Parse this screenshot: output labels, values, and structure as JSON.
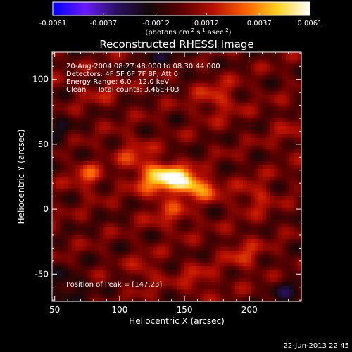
{
  "chart_data": {
    "type": "heatmap",
    "title": "Reconstructed RHESSI Image",
    "xlabel": "Heliocentric X (arcsec)",
    "ylabel": "Heliocentric Y (arcsec)",
    "xlim": [
      48,
      240
    ],
    "ylim": [
      -71,
      121
    ],
    "x_ticks": [
      50,
      100,
      150,
      200
    ],
    "y_ticks": [
      -50,
      0,
      50,
      100
    ],
    "colorbar": {
      "min": -0.0061,
      "max": 0.0061,
      "tick_values": [
        -0.0061,
        -0.0037,
        -0.0012,
        0.0012,
        0.0037,
        0.0061
      ],
      "tick_labels": [
        "-0.0061",
        "-0.0037",
        "-0.0012",
        "0.0012",
        "0.0037",
        "0.0061"
      ],
      "units_text": "(photons cm",
      "units_sup1": "-2",
      "units_mid1": " s",
      "units_sup2": "-1",
      "units_mid2": " asec",
      "units_sup3": "-2",
      "units_end": ")",
      "colormap_stops": [
        "#0000ff",
        "#6a1aff",
        "#2a1060",
        "#140808",
        "#5c0000",
        "#b81000",
        "#ff6000",
        "#ffd21e",
        "#ffffff"
      ]
    },
    "annotations": [
      "20-Aug-2004 08:27:48.000 to 08:30:44.000",
      "Detectors: 4F 5F 6F 7F 8F, Att 0",
      "Energy Range: 6.0 - 12.0 keV",
      "Clean     Total counts: 3.46E+03"
    ],
    "peak_label": "Position of Peak = [147,23]",
    "peak": {
      "x": 147,
      "y": 23,
      "value": 0.0061
    },
    "sources": [
      {
        "x": 147,
        "y": 23,
        "sx": 18,
        "sy": 6,
        "rot": -0.35,
        "amp": 0.0061
      },
      {
        "x": 128,
        "y": 18,
        "sx": 14,
        "sy": 7,
        "rot": -0.3,
        "amp": 0.0028
      },
      {
        "x": 75,
        "y": 25,
        "sx": 8,
        "sy": 8,
        "rot": 0,
        "amp": 0.0022
      },
      {
        "x": 110,
        "y": 45,
        "sx": 10,
        "sy": 8,
        "rot": 0,
        "amp": 0.0015
      },
      {
        "x": 175,
        "y": 85,
        "sx": 12,
        "sy": 10,
        "rot": 0,
        "amp": 0.0018
      },
      {
        "x": 140,
        "y": -5,
        "sx": 12,
        "sy": 8,
        "rot": 0,
        "amp": 0.0016
      },
      {
        "x": 205,
        "y": 10,
        "sx": 9,
        "sy": 9,
        "rot": 0,
        "amp": 0.0017
      },
      {
        "x": 120,
        "y": -48,
        "sx": 8,
        "sy": 8,
        "rot": 0,
        "amp": 0.0014
      },
      {
        "x": 195,
        "y": -35,
        "sx": 10,
        "sy": 10,
        "rot": 0,
        "amp": 0.0016
      },
      {
        "x": 160,
        "y": -55,
        "sx": 10,
        "sy": 8,
        "rot": 0,
        "amp": 0.0015
      },
      {
        "x": 85,
        "y": 90,
        "sx": 12,
        "sy": 8,
        "rot": 0,
        "amp": 0.0009
      },
      {
        "x": 230,
        "y": 60,
        "sx": 8,
        "sy": 12,
        "rot": 0,
        "amp": 0.0008
      },
      {
        "x": 60,
        "y": -60,
        "sx": 10,
        "sy": 8,
        "rot": 0,
        "amp": -0.0018
      },
      {
        "x": 230,
        "y": -65,
        "sx": 10,
        "sy": 8,
        "rot": 0,
        "amp": -0.0016
      },
      {
        "x": 140,
        "y": 118,
        "sx": 14,
        "sy": 6,
        "rot": 0,
        "amp": -0.0014
      },
      {
        "x": 55,
        "y": 60,
        "sx": 6,
        "sy": 10,
        "rot": 0,
        "amp": -0.0012
      }
    ]
  },
  "footer": {
    "timestamp": "22-Jun-2013 22:45"
  }
}
